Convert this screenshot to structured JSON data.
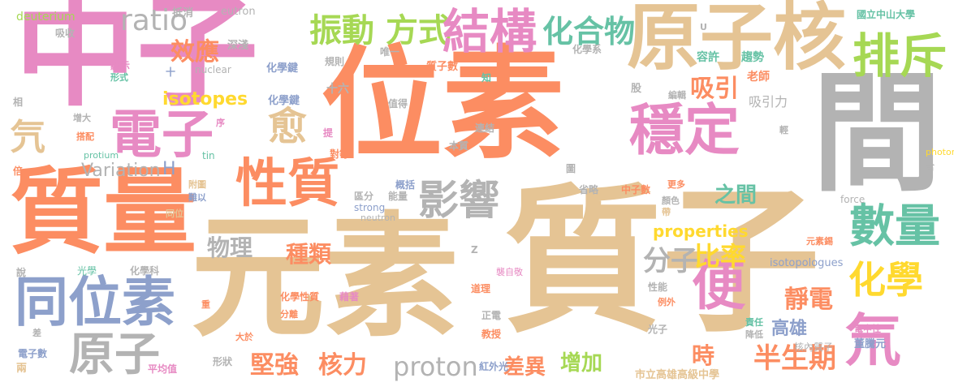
{
  "palette": {
    "pink": "#e78ac3",
    "orange": "#fc8d62",
    "tan": "#e5c494",
    "gray": "#b3b3b3",
    "green": "#a6d854",
    "teal": "#66c2a5",
    "yellow": "#ffd92f",
    "blue": "#8da0cb"
  },
  "words": [
    "中子",
    "位素",
    "質子",
    "元素",
    "原子核",
    "間",
    "質量",
    "排斥",
    "振動",
    "方式",
    "結構",
    "化合物",
    "電子",
    "穩定",
    "性質",
    "影響",
    "數量",
    "化學",
    "同位素",
    "原子",
    "便",
    "氘",
    "氕",
    "愈",
    "ratio",
    "效應",
    "吸引",
    "isotopes",
    "Variation",
    "H",
    "proton",
    "分子",
    "比率",
    "物理",
    "種類",
    "properties",
    "靜電",
    "高雄",
    "時",
    "半生期",
    "堅強",
    "核力",
    "差異",
    "增加",
    "之間",
    "國立中山大學",
    "容許",
    "趨勢",
    "老師",
    "吸引力",
    "元素錫",
    "isotopologues",
    "董騰元",
    "電中性",
    "核內質子",
    "市立高雄高級中學",
    "中子數",
    "化學性質",
    "藉著",
    "deuterium",
    "eutron",
    "抵消",
    "吸收",
    "深淺",
    "顯示",
    "形式",
    "nuclear",
    "規則",
    "唯一",
    "質子數",
    "知",
    "化學系",
    "化學鍵",
    "化學鍵",
    "infrared",
    "protium",
    "tin",
    "photons",
    "force",
    "strong",
    "neutron",
    "光學",
    "同位",
    "難以",
    "附圖",
    "序",
    "搭配",
    "相",
    "增大",
    "倍",
    "十",
    "十六",
    "提",
    "對等",
    "值得",
    "連結",
    "本質",
    "概括",
    "能量",
    "區分",
    "省略",
    "更多",
    "顏色",
    "帶",
    "Z",
    "襲自敬",
    "道理",
    "正電",
    "教授",
    "性能",
    "例外",
    "光子",
    "降低",
    "責任",
    "形狀",
    "紅外光",
    "平均值",
    "電子數",
    "兩",
    "差",
    "大於",
    "分離",
    "重",
    "化學科",
    "說",
    "編輯",
    "股",
    "圖",
    "含",
    "輕",
    "U"
  ]
}
